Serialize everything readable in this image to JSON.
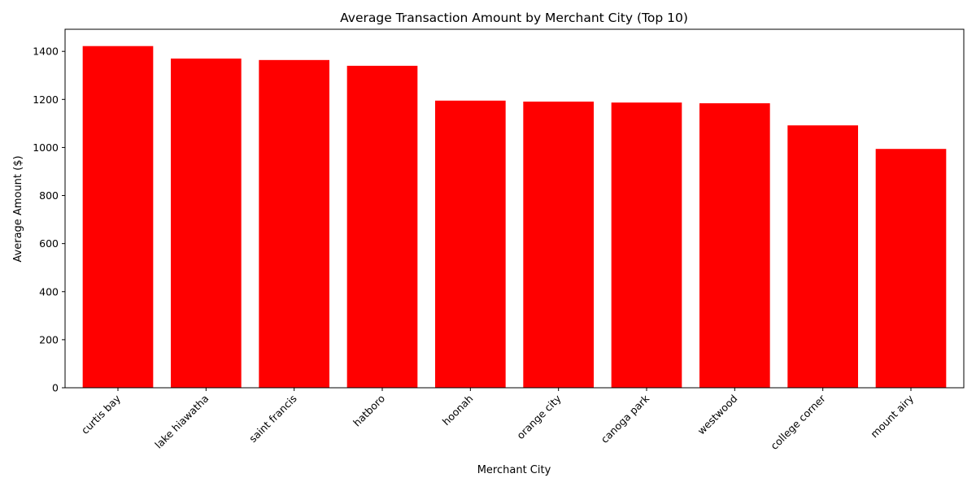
{
  "chart_data": {
    "type": "bar",
    "title": "Average Transaction Amount by Merchant City (Top 10)",
    "xlabel": "Merchant City",
    "ylabel": "Average Amount ($)",
    "categories": [
      "curtis bay",
      "lake hiawatha",
      "saint francis",
      "hatboro",
      "hoonah",
      "orange city",
      "canoga park",
      "westwood",
      "college corner",
      "mount airy"
    ],
    "values": [
      1422,
      1370,
      1364,
      1340,
      1195,
      1191,
      1187,
      1184,
      1092,
      994
    ],
    "ylim": [
      0,
      1492
    ],
    "yticks": [
      0,
      200,
      400,
      600,
      800,
      1000,
      1200,
      1400
    ],
    "bar_color": "#ff0000",
    "grid": false,
    "legend": false,
    "xtick_rotation": 45
  }
}
